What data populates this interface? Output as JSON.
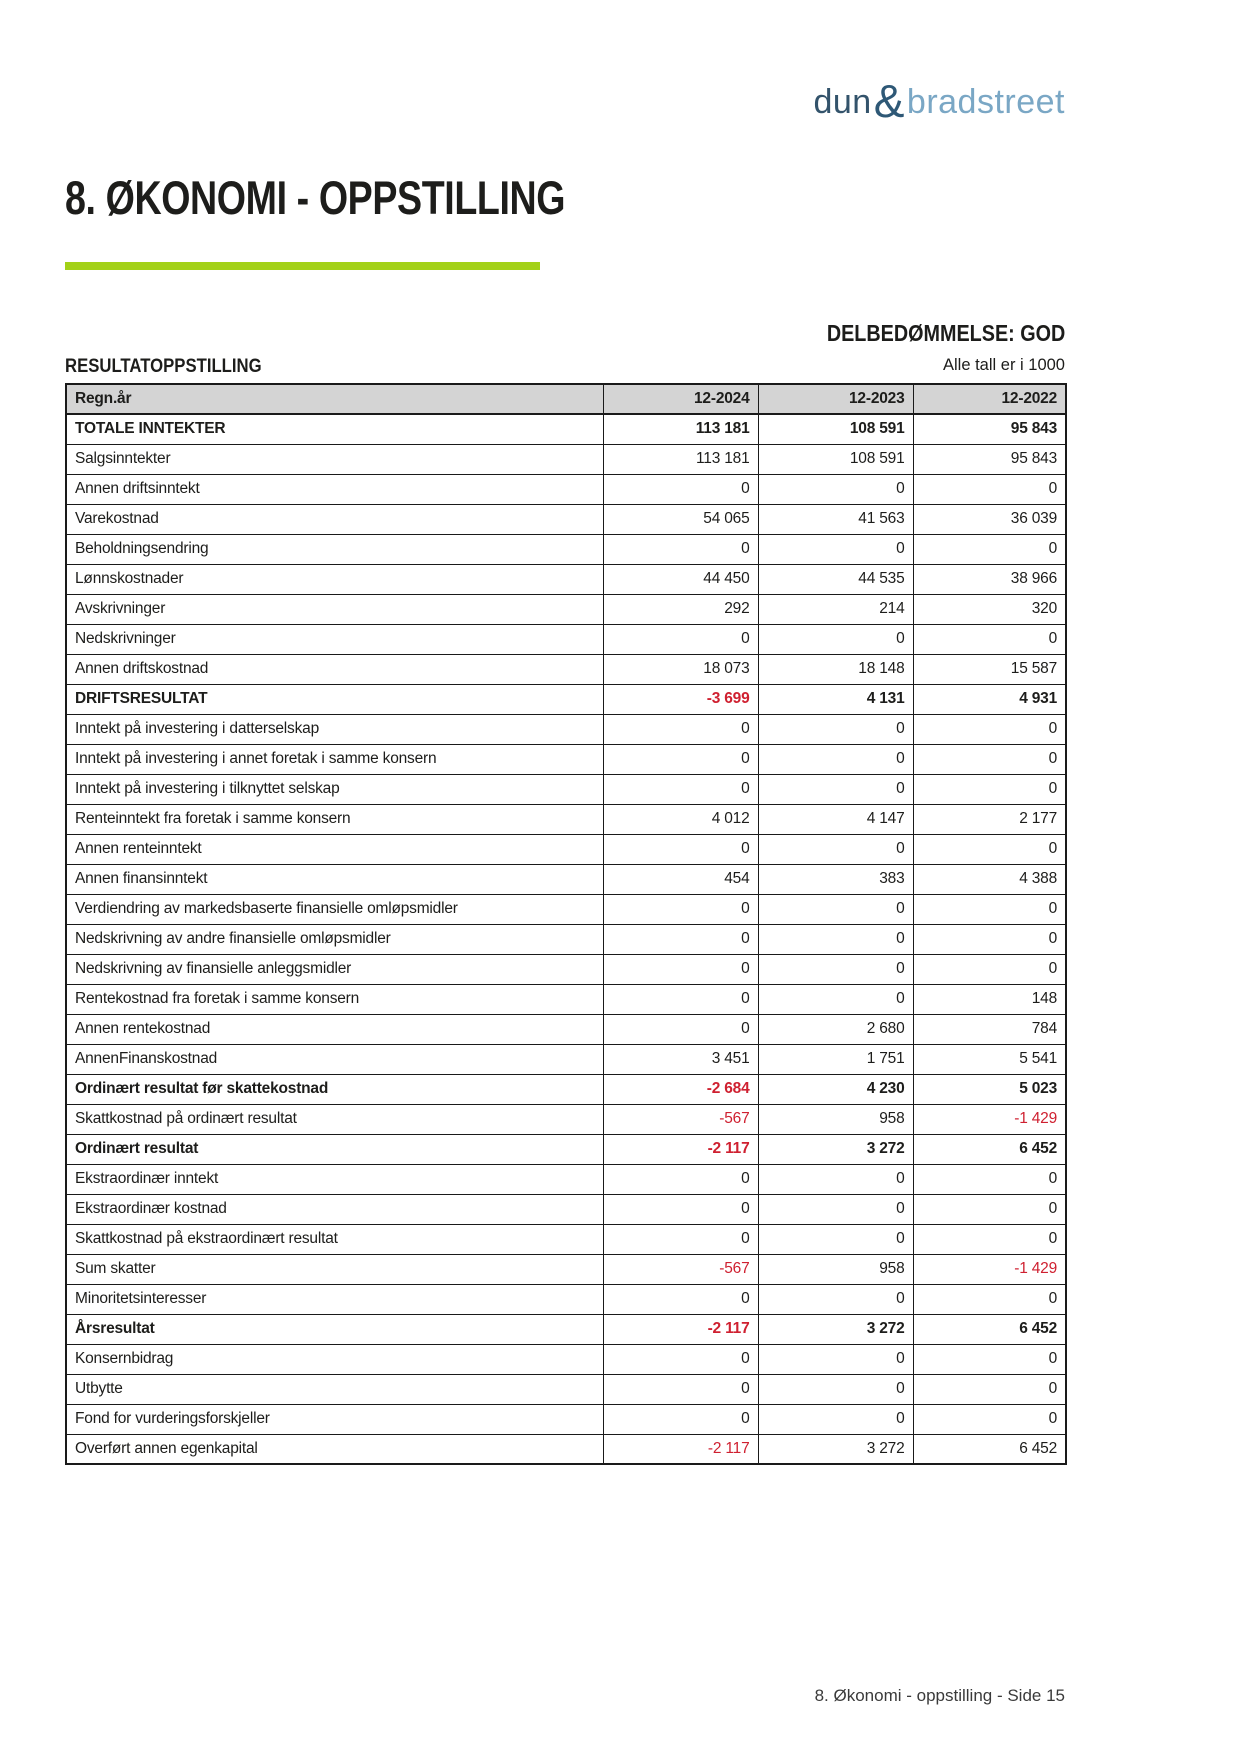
{
  "logo": {
    "part1": "dun",
    "amp": "&",
    "part2": "bradstreet"
  },
  "page_title": "8. ØKONOMI - OPPSTILLING",
  "assessment": "DELBEDØMMELSE: GOD",
  "section_title": "RESULTATOPPSTILLING",
  "units_note": "Alle tall er i 1000",
  "footer_text": "8. Økonomi - oppstilling - Side 15",
  "colors": {
    "accent_green": "#a3d118",
    "negative_red": "#cf2030",
    "header_gray": "#d4d4d4"
  },
  "table": {
    "header": {
      "label": "Regn.år",
      "years": [
        "12-2024",
        "12-2023",
        "12-2022"
      ]
    },
    "rows": [
      {
        "label": "TOTALE INNTEKTER",
        "bold": true,
        "values": [
          "113 181",
          "108 591",
          "95 843"
        ]
      },
      {
        "label": "Salgsinntekter",
        "bold": false,
        "values": [
          "113 181",
          "108 591",
          "95 843"
        ]
      },
      {
        "label": "Annen driftsinntekt",
        "bold": false,
        "values": [
          "0",
          "0",
          "0"
        ]
      },
      {
        "label": "Varekostnad",
        "bold": false,
        "values": [
          "54 065",
          "41 563",
          "36 039"
        ]
      },
      {
        "label": "Beholdningsendring",
        "bold": false,
        "values": [
          "0",
          "0",
          "0"
        ]
      },
      {
        "label": "Lønnskostnader",
        "bold": false,
        "values": [
          "44 450",
          "44 535",
          "38 966"
        ]
      },
      {
        "label": "Avskrivninger",
        "bold": false,
        "values": [
          "292",
          "214",
          "320"
        ]
      },
      {
        "label": "Nedskrivninger",
        "bold": false,
        "values": [
          "0",
          "0",
          "0"
        ]
      },
      {
        "label": "Annen driftskostnad",
        "bold": false,
        "values": [
          "18 073",
          "18 148",
          "15 587"
        ]
      },
      {
        "label": "DRIFTSRESULTAT",
        "bold": true,
        "values": [
          "-3 699",
          "4 131",
          "4 931"
        ]
      },
      {
        "label": "Inntekt på investering i datterselskap",
        "bold": false,
        "values": [
          "0",
          "0",
          "0"
        ]
      },
      {
        "label": "Inntekt på investering i annet foretak i samme konsern",
        "bold": false,
        "values": [
          "0",
          "0",
          "0"
        ]
      },
      {
        "label": "Inntekt på investering i tilknyttet selskap",
        "bold": false,
        "values": [
          "0",
          "0",
          "0"
        ]
      },
      {
        "label": "Renteinntekt fra foretak i samme konsern",
        "bold": false,
        "values": [
          "4 012",
          "4 147",
          "2 177"
        ]
      },
      {
        "label": "Annen renteinntekt",
        "bold": false,
        "values": [
          "0",
          "0",
          "0"
        ]
      },
      {
        "label": "Annen finansinntekt",
        "bold": false,
        "values": [
          "454",
          "383",
          "4 388"
        ]
      },
      {
        "label": "Verdiendring av markedsbaserte finansielle omløpsmidler",
        "bold": false,
        "values": [
          "0",
          "0",
          "0"
        ]
      },
      {
        "label": "Nedskrivning av andre finansielle omløpsmidler",
        "bold": false,
        "values": [
          "0",
          "0",
          "0"
        ]
      },
      {
        "label": "Nedskrivning av finansielle anleggsmidler",
        "bold": false,
        "values": [
          "0",
          "0",
          "0"
        ]
      },
      {
        "label": "Rentekostnad fra foretak i samme konsern",
        "bold": false,
        "values": [
          "0",
          "0",
          "148"
        ]
      },
      {
        "label": "Annen rentekostnad",
        "bold": false,
        "values": [
          "0",
          "2 680",
          "784"
        ]
      },
      {
        "label": "AnnenFinanskostnad",
        "bold": false,
        "values": [
          "3 451",
          "1 751",
          "5 541"
        ]
      },
      {
        "label": "Ordinært resultat før skattekostnad",
        "bold": true,
        "values": [
          "-2 684",
          "4 230",
          "5 023"
        ]
      },
      {
        "label": "Skattkostnad på ordinært resultat",
        "bold": false,
        "values": [
          "-567",
          "958",
          "-1 429"
        ]
      },
      {
        "label": "Ordinært resultat",
        "bold": true,
        "values": [
          "-2 117",
          "3 272",
          "6 452"
        ]
      },
      {
        "label": "Ekstraordinær inntekt",
        "bold": false,
        "values": [
          "0",
          "0",
          "0"
        ]
      },
      {
        "label": "Ekstraordinær kostnad",
        "bold": false,
        "values": [
          "0",
          "0",
          "0"
        ]
      },
      {
        "label": "Skattkostnad på ekstraordinært resultat",
        "bold": false,
        "values": [
          "0",
          "0",
          "0"
        ]
      },
      {
        "label": "Sum skatter",
        "bold": false,
        "values": [
          "-567",
          "958",
          "-1 429"
        ]
      },
      {
        "label": "Minoritetsinteresser",
        "bold": false,
        "values": [
          "0",
          "0",
          "0"
        ]
      },
      {
        "label": "Årsresultat",
        "bold": true,
        "values": [
          "-2 117",
          "3 272",
          "6 452"
        ]
      },
      {
        "label": "Konsernbidrag",
        "bold": false,
        "values": [
          "0",
          "0",
          "0"
        ]
      },
      {
        "label": "Utbytte",
        "bold": false,
        "values": [
          "0",
          "0",
          "0"
        ]
      },
      {
        "label": "Fond for vurderingsforskjeller",
        "bold": false,
        "values": [
          "0",
          "0",
          "0"
        ]
      },
      {
        "label": "Overført annen egenkapital",
        "bold": false,
        "values": [
          "-2 117",
          "3 272",
          "6 452"
        ]
      }
    ]
  }
}
